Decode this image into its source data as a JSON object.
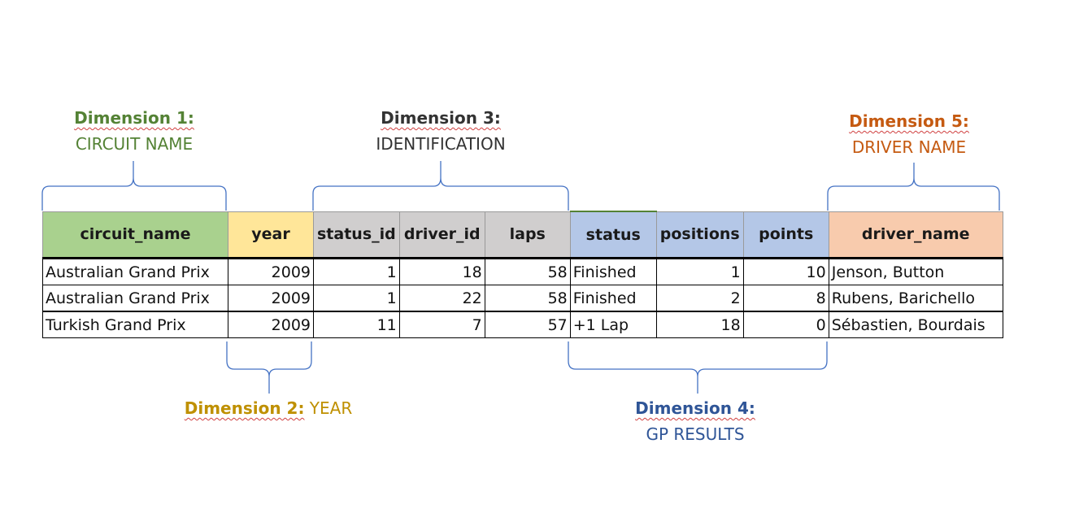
{
  "dimensions": [
    {
      "heading": "Dimension 1:",
      "heading_rest": "",
      "subtitle": "CIRCUIT NAME",
      "color": "#548235"
    },
    {
      "heading": "Dimension 2:",
      "heading_rest": " YEAR",
      "subtitle": "",
      "color": "#BF9000"
    },
    {
      "heading": "Dimension 3:",
      "heading_rest": "",
      "subtitle": "IDENTIFICATION",
      "color": "#333333"
    },
    {
      "heading": "Dimension 4:",
      "heading_rest": "",
      "subtitle": "GP RESULTS",
      "color": "#2F5597"
    },
    {
      "heading": "Dimension 5:",
      "heading_rest": "",
      "subtitle": "DRIVER NAME",
      "color": "#C55A11"
    }
  ],
  "table": {
    "columns": [
      {
        "label": "circuit_name",
        "color": "#A9D18E"
      },
      {
        "label": "year",
        "color": "#FFE699"
      },
      {
        "label": "status_id",
        "color": "#D0CECE"
      },
      {
        "label": "driver_id",
        "color": "#D0CECE"
      },
      {
        "label": "laps",
        "color": "#D0CECE"
      },
      {
        "label": "status",
        "color": "#B4C7E7"
      },
      {
        "label": "positions",
        "color": "#B4C7E7"
      },
      {
        "label": "points",
        "color": "#B4C7E7"
      },
      {
        "label": "driver_name",
        "color": "#F8CBAD"
      }
    ],
    "rows": [
      [
        "Australian Grand Prix",
        "2009",
        "1",
        "18",
        "58",
        "Finished",
        "1",
        "10",
        "Jenson, Button"
      ],
      [
        "Australian Grand Prix",
        "2009",
        "1",
        "22",
        "58",
        "Finished",
        "2",
        "8",
        "Rubens, Barichello"
      ],
      [
        "Turkish Grand Prix",
        "2009",
        "11",
        "7",
        "57",
        "+1 Lap",
        "18",
        "0",
        "Sébastien, Bourdais"
      ]
    ]
  },
  "brace_color": "#4472C4"
}
